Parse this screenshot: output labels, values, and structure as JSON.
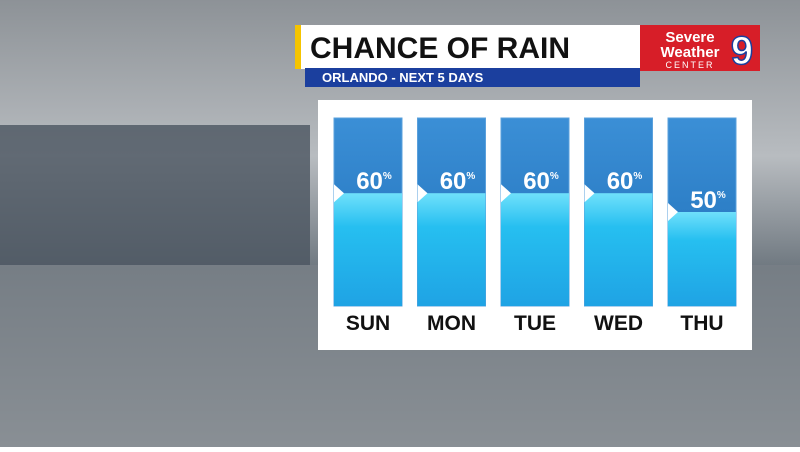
{
  "chart_data": {
    "type": "bar",
    "title": "CHANCE OF RAIN",
    "subtitle": "ORLANDO - NEXT 5 DAYS",
    "categories": [
      "SUN",
      "MON",
      "TUE",
      "WED",
      "THU"
    ],
    "values": [
      60,
      60,
      60,
      60,
      50
    ],
    "value_unit": "%",
    "ylim": [
      0,
      100
    ],
    "color": "#29c3ef"
  },
  "logo": {
    "line1": "Severe",
    "line2": "Weather",
    "line3": "CENTER",
    "number": "9"
  }
}
